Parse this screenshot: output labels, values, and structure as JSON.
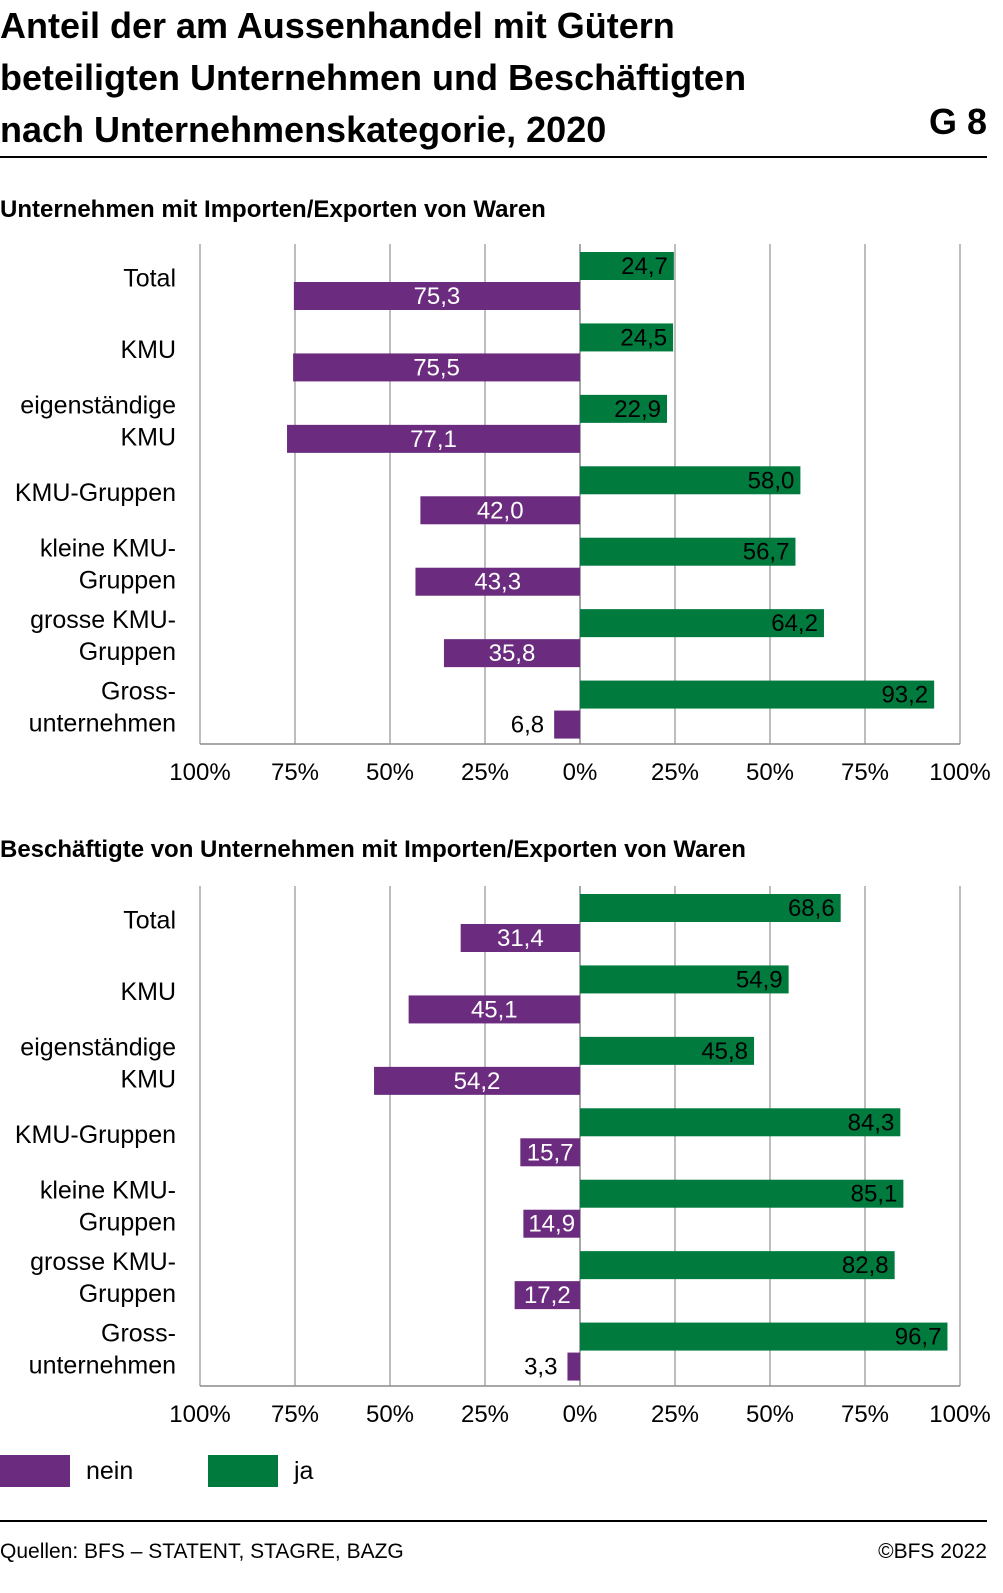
{
  "title_lines": [
    "Anteil der am Aussenhandel mit Gütern",
    "beteiligten Unternehmen und Beschäftigten",
    "nach Unternehmenskategorie, 2020"
  ],
  "figure_number": "G 8",
  "colors": {
    "nein": "#6b2c7f",
    "ja": "#007a3d",
    "grid": "#9a9a9a"
  },
  "legend": {
    "nein": "nein",
    "ja": "ja"
  },
  "footer": {
    "source": "Quellen: BFS – STATENT, STAGRE, BAZG",
    "copyright": "©BFS 2022"
  },
  "chart_data": [
    {
      "type": "bar",
      "orientation": "horizontal-diverging",
      "title": "Unternehmen mit Importen/Exporten von Waren",
      "categories": [
        [
          "Total"
        ],
        [
          "KMU"
        ],
        [
          "eigenständige",
          "KMU"
        ],
        [
          "KMU-Gruppen"
        ],
        [
          "kleine KMU-",
          "Gruppen"
        ],
        [
          "grosse KMU-",
          "Gruppen"
        ],
        [
          "Gross-",
          "unternehmen"
        ]
      ],
      "series": [
        {
          "name": "ja",
          "values": [
            24.7,
            24.5,
            22.9,
            58.0,
            56.7,
            64.2,
            93.2
          ],
          "labels": [
            "24,7",
            "24,5",
            "22,9",
            "58,0",
            "56,7",
            "64,2",
            "93,2"
          ]
        },
        {
          "name": "nein",
          "values": [
            75.3,
            75.5,
            77.1,
            42.0,
            43.3,
            35.8,
            6.8
          ],
          "labels": [
            "75,3",
            "75,5",
            "77,1",
            "42,0",
            "43,3",
            "35,8",
            "6,8"
          ]
        }
      ],
      "xlim": [
        -100,
        100
      ],
      "xticks": [
        "100%",
        "75%",
        "50%",
        "25%",
        "0%",
        "25%",
        "50%",
        "75%",
        "100%"
      ],
      "grid": true
    },
    {
      "type": "bar",
      "orientation": "horizontal-diverging",
      "title": "Beschäftigte von Unternehmen mit Importen/Exporten von Waren",
      "categories": [
        [
          "Total"
        ],
        [
          "KMU"
        ],
        [
          "eigenständige",
          "KMU"
        ],
        [
          "KMU-Gruppen"
        ],
        [
          "kleine KMU-",
          "Gruppen"
        ],
        [
          "grosse KMU-",
          "Gruppen"
        ],
        [
          "Gross-",
          "unternehmen"
        ]
      ],
      "series": [
        {
          "name": "ja",
          "values": [
            68.6,
            54.9,
            45.8,
            84.3,
            85.1,
            82.8,
            96.7
          ],
          "labels": [
            "68,6",
            "54,9",
            "45,8",
            "84,3",
            "85,1",
            "82,8",
            "96,7"
          ]
        },
        {
          "name": "nein",
          "values": [
            31.4,
            45.1,
            54.2,
            15.7,
            14.9,
            17.2,
            3.3
          ],
          "labels": [
            "31,4",
            "45,1",
            "54,2",
            "15,7",
            "14,9",
            "17,2",
            "3,3"
          ]
        }
      ],
      "xlim": [
        -100,
        100
      ],
      "xticks": [
        "100%",
        "75%",
        "50%",
        "25%",
        "0%",
        "25%",
        "50%",
        "75%",
        "100%"
      ],
      "grid": true
    }
  ]
}
